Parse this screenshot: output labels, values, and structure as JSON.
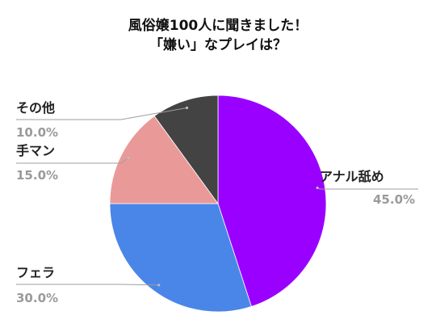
{
  "chart_data": {
    "type": "pie",
    "title_lines": [
      "風俗嬢100人に聞きました！",
      "「嫌い」なプレイは？"
    ],
    "slices": [
      {
        "label": "アナル舐め",
        "value": 45.0,
        "value_label": "45.0%",
        "color": "#9900ff"
      },
      {
        "label": "フェラ",
        "value": 30.0,
        "value_label": "30.0%",
        "color": "#4a86e8"
      },
      {
        "label": "手マン",
        "value": 15.0,
        "value_label": "15.0%",
        "color": "#ea9999"
      },
      {
        "label": "その他",
        "value": 10.0,
        "value_label": "10.0%",
        "color": "#434343"
      }
    ],
    "start_angle": "12 o'clock",
    "direction": "clockwise",
    "legend": "none"
  }
}
